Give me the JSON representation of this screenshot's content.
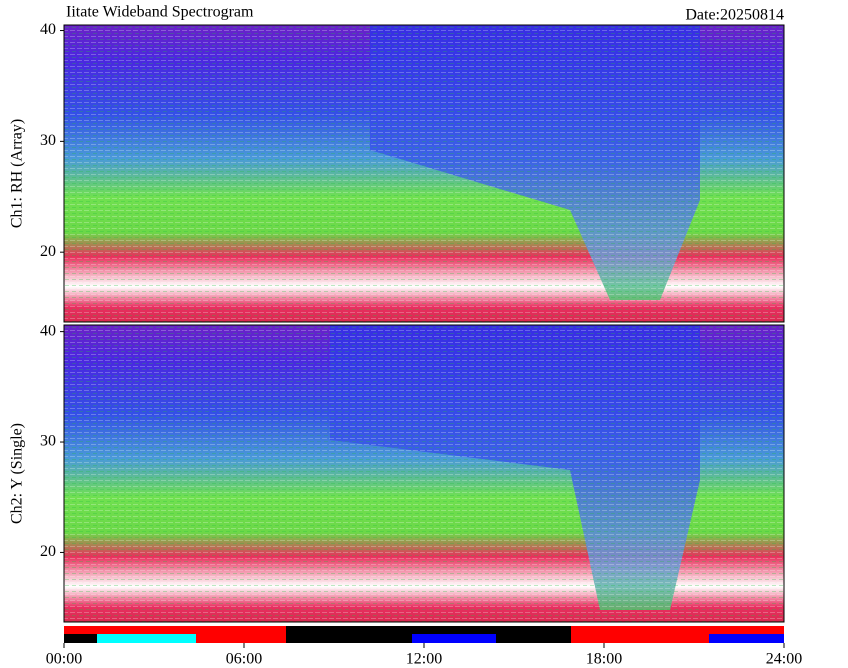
{
  "chart_data": [
    {
      "type": "heatmap",
      "title": "Iitate Wideband Spectrogram",
      "date": "Date:20250814",
      "y_label": "Ch1: RH (Array)",
      "ylim": [
        13.7,
        40.5
      ],
      "yticks": [
        20,
        30,
        40
      ]
    },
    {
      "type": "heatmap",
      "y_label": "Ch2: Y (Single)",
      "ylim": [
        13.7,
        40.6
      ],
      "yticks": [
        20,
        30,
        40
      ]
    },
    {
      "type": "timeline",
      "xlim": [
        0,
        24
      ],
      "xticks": [
        {
          "value": 0,
          "label": "00:00"
        },
        {
          "value": 6,
          "label": "06:00"
        },
        {
          "value": 12,
          "label": "12:00"
        },
        {
          "value": 18,
          "label": "18:00"
        },
        {
          "value": 24,
          "label": "24:00"
        }
      ],
      "rows": [
        [
          {
            "start": 0,
            "end": 7.4,
            "color": "#ff0000"
          },
          {
            "start": 7.4,
            "end": 16.9,
            "color": "#000000"
          },
          {
            "start": 16.9,
            "end": 24,
            "color": "#ff0000"
          }
        ],
        [
          {
            "start": 0,
            "end": 1.1,
            "color": "#000000"
          },
          {
            "start": 1.1,
            "end": 4.4,
            "color": "#00ffff"
          },
          {
            "start": 4.4,
            "end": 7.4,
            "color": "#ff0000"
          },
          {
            "start": 7.4,
            "end": 11.6,
            "color": "#000000"
          },
          {
            "start": 11.6,
            "end": 14.4,
            "color": "#0000ff"
          },
          {
            "start": 14.4,
            "end": 16.9,
            "color": "#000000"
          },
          {
            "start": 16.9,
            "end": 21.5,
            "color": "#ff0000"
          },
          {
            "start": 21.5,
            "end": 24,
            "color": "#0000ff"
          }
        ]
      ]
    }
  ]
}
